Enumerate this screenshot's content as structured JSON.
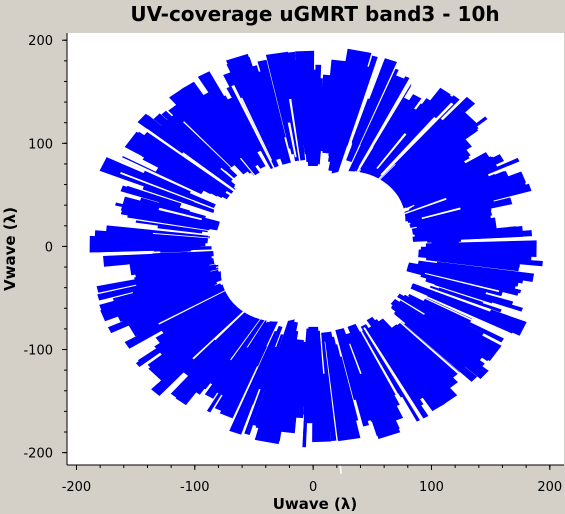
{
  "chart_data": {
    "type": "scatter",
    "title": "UV-coverage uGMRT band3 - 10h",
    "xlabel": "Uwave (λ)",
    "ylabel": "Vwave (λ)",
    "xlim": [
      -208,
      212
    ],
    "ylim": [
      -212,
      207
    ],
    "xticks": [
      -200,
      -100,
      0,
      100,
      200
    ],
    "yticks": [
      -200,
      -100,
      0,
      100,
      200
    ],
    "grid": false,
    "series": [
      {
        "color": "#0000ff",
        "description_shape": "annular uv track coverage",
        "inner_radius": 60,
        "outer_radius": 195,
        "points_sampled": "dense radial tracks"
      }
    ],
    "colors": {
      "plot_bg": "#ffffff",
      "points": "#0000ff",
      "frame": "#d4d0c8"
    }
  }
}
